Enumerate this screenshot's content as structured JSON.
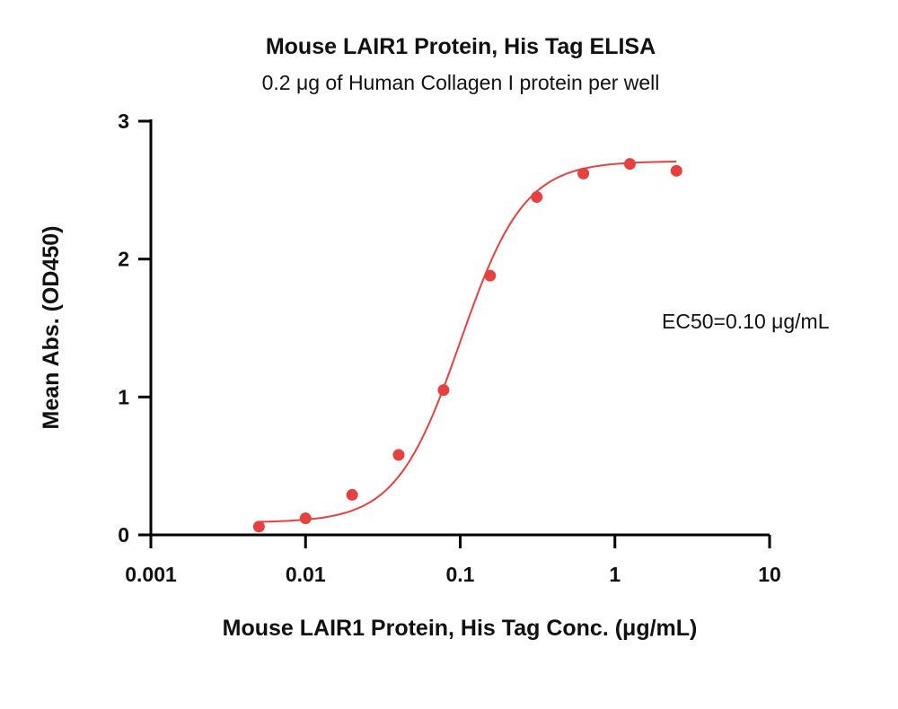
{
  "chart_data": {
    "type": "scatter",
    "title": "Mouse LAIR1 Protein, His Tag ELISA",
    "subtitle": "0.2 μg of Human Collagen I protein per well",
    "xlabel": "Mouse LAIR1 Protein, His Tag Conc. (μg/mL)",
    "ylabel": "Mean Abs. (OD450)",
    "x_scale": "log",
    "xlim": [
      0.001,
      10
    ],
    "ylim": [
      0,
      3
    ],
    "x_ticks": [
      0.001,
      0.01,
      0.1,
      1,
      10
    ],
    "x_tick_labels": [
      "0.001",
      "0.01",
      "0.1",
      "1",
      "10"
    ],
    "y_ticks": [
      0,
      1,
      2,
      3
    ],
    "y_tick_labels": [
      "0",
      "1",
      "2",
      "3"
    ],
    "grid": false,
    "series": [
      {
        "color": "#e8403f",
        "x": [
          0.005,
          0.01,
          0.02,
          0.04,
          0.078,
          0.156,
          0.3125,
          0.625,
          1.25,
          2.5
        ],
        "y": [
          0.06,
          0.12,
          0.29,
          0.58,
          1.05,
          1.88,
          2.45,
          2.62,
          2.69,
          2.64
        ],
        "fit": {
          "model": "4PL",
          "bottom": 0.09,
          "top": 2.71,
          "ec50": 0.1,
          "hill": 2.1
        }
      }
    ],
    "annotations": [
      {
        "text": "EC50=0.10 μg/mL"
      }
    ]
  }
}
